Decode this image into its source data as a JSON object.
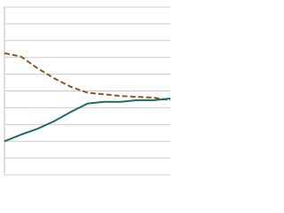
{
  "chart_data": {
    "type": "line",
    "x": [
      0,
      1,
      2,
      3,
      4,
      5,
      6,
      7,
      8,
      9,
      10
    ],
    "xlim": [
      0,
      10
    ],
    "ylim": [
      0,
      10
    ],
    "yticks": [
      0,
      1,
      2,
      3,
      4,
      5,
      6,
      7,
      8,
      9,
      10
    ],
    "grid": true,
    "series": [
      {
        "color": "#8b5a1e",
        "dashed": true,
        "values": [
          7.25,
          7.05,
          6.35,
          5.75,
          5.25,
          4.9,
          4.8,
          4.7,
          4.65,
          4.6,
          4.45
        ]
      },
      {
        "color": "#1d6b67",
        "dashed": false,
        "values": [
          2.0,
          2.4,
          2.75,
          3.2,
          3.75,
          4.25,
          4.35,
          4.35,
          4.45,
          4.45,
          4.55
        ]
      }
    ]
  }
}
